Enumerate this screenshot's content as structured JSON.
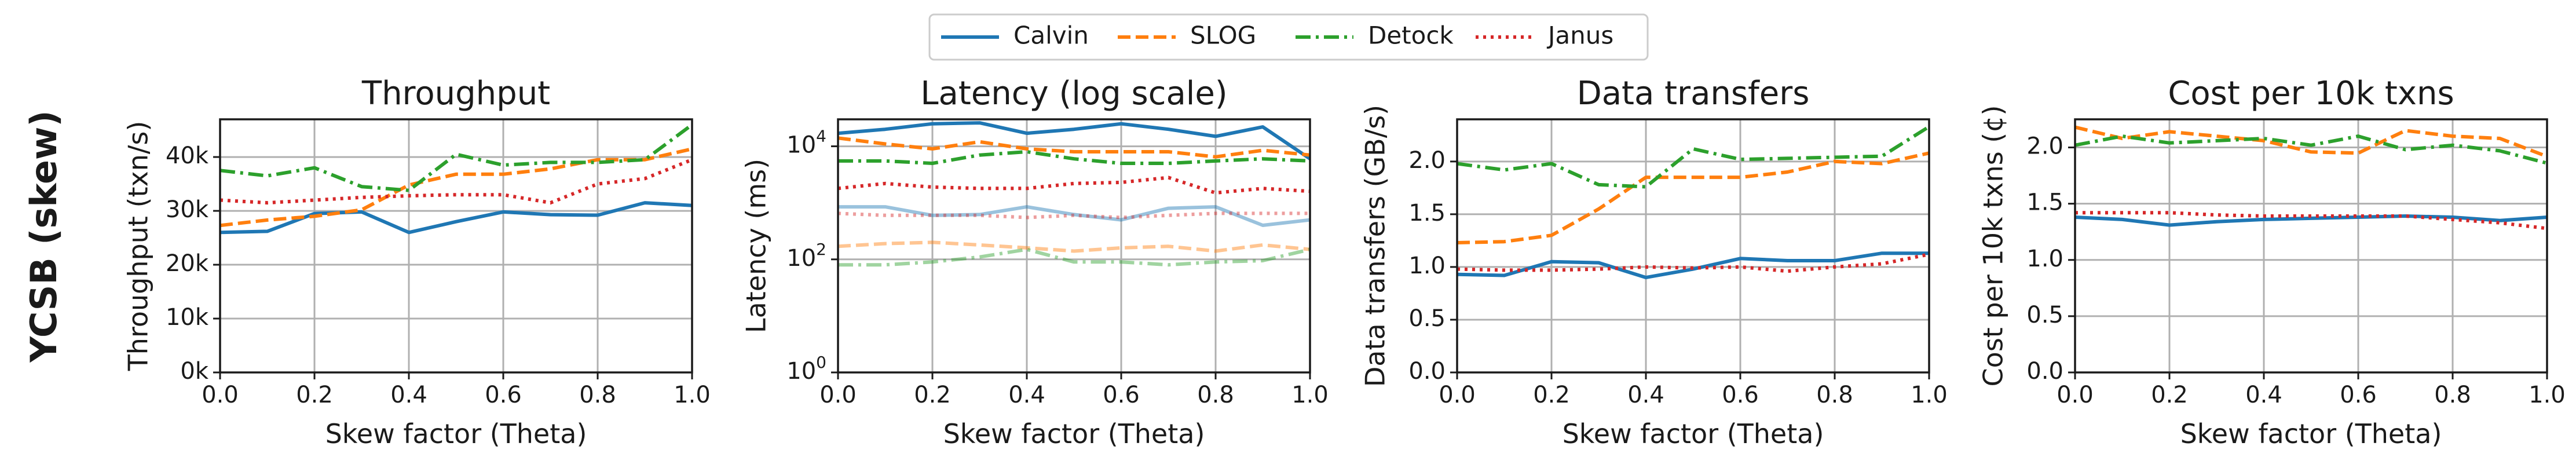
{
  "row_label": "YCSB (skew)",
  "legend": {
    "placement": "top-center",
    "entries": [
      {
        "name": "Calvin",
        "color": "#1f77b4",
        "dash": "solid"
      },
      {
        "name": "SLOG",
        "color": "#ff7f0e",
        "dash": "dashed"
      },
      {
        "name": "Detock",
        "color": "#2ca02c",
        "dash": "dashdot"
      },
      {
        "name": "Janus",
        "color": "#d62728",
        "dash": "dotted"
      }
    ]
  },
  "chart_data": [
    {
      "type": "line",
      "title": "Throughput",
      "xlabel": "Skew factor (Theta)",
      "ylabel": "Throughput (txn/s)",
      "x": [
        0.0,
        0.1,
        0.2,
        0.3,
        0.4,
        0.5,
        0.6,
        0.7,
        0.8,
        0.9,
        1.0
      ],
      "xlim": [
        0,
        1
      ],
      "xticks": [
        "0.0",
        "0.2",
        "0.4",
        "0.6",
        "0.8",
        "1.0"
      ],
      "ylim": [
        0,
        47000
      ],
      "yticks": [
        0,
        10000,
        20000,
        30000,
        40000
      ],
      "yticklabels": [
        "0k",
        "10k",
        "20k",
        "30k",
        "40k"
      ],
      "scale": "linear",
      "grid": true,
      "series": [
        {
          "name": "Calvin",
          "values": [
            26000,
            26200,
            29500,
            29800,
            26000,
            28000,
            29800,
            29300,
            29200,
            31500,
            31000
          ]
        },
        {
          "name": "SLOG",
          "values": [
            27300,
            28300,
            29000,
            30200,
            34800,
            36800,
            36800,
            37800,
            39500,
            39500,
            41500
          ]
        },
        {
          "name": "Detock",
          "values": [
            37500,
            36500,
            38000,
            34500,
            33800,
            40500,
            38500,
            39000,
            39000,
            39500,
            46000
          ]
        },
        {
          "name": "Janus",
          "values": [
            32000,
            31500,
            32000,
            32500,
            32800,
            33000,
            33000,
            31500,
            35000,
            36000,
            39500
          ]
        }
      ]
    },
    {
      "type": "line",
      "title": "Latency (log scale)",
      "xlabel": "Skew factor (Theta)",
      "ylabel": "Latency (ms)",
      "x": [
        0.0,
        0.1,
        0.2,
        0.3,
        0.4,
        0.5,
        0.6,
        0.7,
        0.8,
        0.9,
        1.0
      ],
      "xlim": [
        0,
        1
      ],
      "xticks": [
        "0.0",
        "0.2",
        "0.4",
        "0.6",
        "0.8",
        "1.0"
      ],
      "scale": "log",
      "ylim": [
        1,
        30000
      ],
      "yticks": [
        1,
        100,
        10000
      ],
      "yticklabels": [
        "10^0",
        "10^2",
        "10^4"
      ],
      "grid": true,
      "series": [
        {
          "name": "Calvin",
          "values": [
            17000,
            20000,
            25000,
            26000,
            17000,
            20000,
            25000,
            20000,
            15000,
            22000,
            6000
          ]
        },
        {
          "name": "SLOG",
          "values": [
            14000,
            11000,
            9000,
            12000,
            9000,
            8000,
            8000,
            8000,
            6500,
            8500,
            7000
          ]
        },
        {
          "name": "Detock",
          "values": [
            5500,
            5500,
            5000,
            7000,
            8000,
            6000,
            5000,
            5000,
            5500,
            6000,
            5500
          ]
        },
        {
          "name": "Janus",
          "values": [
            1800,
            2200,
            1900,
            1800,
            1800,
            2200,
            2300,
            2800,
            1500,
            1800,
            1600
          ]
        },
        {
          "name": "Calvin",
          "values": [
            850,
            850,
            600,
            620,
            850,
            620,
            500,
            800,
            850,
            400,
            500
          ]
        },
        {
          "name": "SLOG",
          "values": [
            170,
            190,
            200,
            180,
            160,
            140,
            160,
            170,
            140,
            180,
            150
          ]
        },
        {
          "name": "Detock",
          "values": [
            80,
            80,
            90,
            110,
            150,
            90,
            90,
            80,
            90,
            95,
            150
          ]
        },
        {
          "name": "Janus",
          "values": [
            650,
            600,
            600,
            600,
            550,
            600,
            550,
            600,
            650,
            650,
            650
          ]
        }
      ]
    },
    {
      "type": "line",
      "title": "Data transfers",
      "xlabel": "Skew factor (Theta)",
      "ylabel": "Data transfers (GB/s)",
      "x": [
        0.0,
        0.1,
        0.2,
        0.3,
        0.4,
        0.5,
        0.6,
        0.7,
        0.8,
        0.9,
        1.0
      ],
      "xlim": [
        0,
        1
      ],
      "xticks": [
        "0.0",
        "0.2",
        "0.4",
        "0.6",
        "0.8",
        "1.0"
      ],
      "ylim": [
        0,
        2.4
      ],
      "yticks": [
        0.0,
        0.5,
        1.0,
        1.5,
        2.0
      ],
      "yticklabels": [
        "0.0",
        "0.5",
        "1.0",
        "1.5",
        "2.0"
      ],
      "scale": "linear",
      "grid": true,
      "series": [
        {
          "name": "Calvin",
          "values": [
            0.93,
            0.92,
            1.05,
            1.04,
            0.9,
            0.98,
            1.08,
            1.06,
            1.06,
            1.13,
            1.13
          ]
        },
        {
          "name": "SLOG",
          "values": [
            1.23,
            1.24,
            1.3,
            1.55,
            1.85,
            1.85,
            1.85,
            1.9,
            2.0,
            1.98,
            2.08
          ]
        },
        {
          "name": "Detock",
          "values": [
            1.98,
            1.92,
            1.98,
            1.78,
            1.76,
            2.12,
            2.02,
            2.03,
            2.04,
            2.05,
            2.33
          ]
        },
        {
          "name": "Janus",
          "values": [
            0.98,
            0.97,
            0.97,
            0.98,
            1.0,
            0.99,
            1.0,
            0.96,
            1.0,
            1.03,
            1.12
          ]
        }
      ]
    },
    {
      "type": "line",
      "title": "Cost per 10k txns",
      "xlabel": "Skew factor (Theta)",
      "ylabel": "Cost per 10k txns (¢)",
      "x": [
        0.0,
        0.1,
        0.2,
        0.3,
        0.4,
        0.5,
        0.6,
        0.7,
        0.8,
        0.9,
        1.0
      ],
      "xlim": [
        0,
        1
      ],
      "xticks": [
        "0.0",
        "0.2",
        "0.4",
        "0.6",
        "0.8",
        "1.0"
      ],
      "ylim": [
        0,
        2.25
      ],
      "yticks": [
        0.0,
        0.5,
        1.0,
        1.5,
        2.0
      ],
      "yticklabels": [
        "0.0",
        "0.5",
        "1.0",
        "1.5",
        "2.0"
      ],
      "scale": "linear",
      "grid": true,
      "series": [
        {
          "name": "Calvin",
          "values": [
            1.38,
            1.36,
            1.31,
            1.34,
            1.36,
            1.37,
            1.38,
            1.39,
            1.38,
            1.35,
            1.38
          ]
        },
        {
          "name": "SLOG",
          "values": [
            2.18,
            2.08,
            2.14,
            2.1,
            2.06,
            1.96,
            1.95,
            2.15,
            2.1,
            2.08,
            1.92
          ]
        },
        {
          "name": "Detock",
          "values": [
            2.02,
            2.1,
            2.04,
            2.06,
            2.08,
            2.02,
            2.1,
            1.98,
            2.02,
            1.97,
            1.86
          ]
        },
        {
          "name": "Janus",
          "values": [
            1.42,
            1.42,
            1.42,
            1.4,
            1.39,
            1.39,
            1.39,
            1.39,
            1.36,
            1.33,
            1.28
          ]
        }
      ]
    }
  ]
}
